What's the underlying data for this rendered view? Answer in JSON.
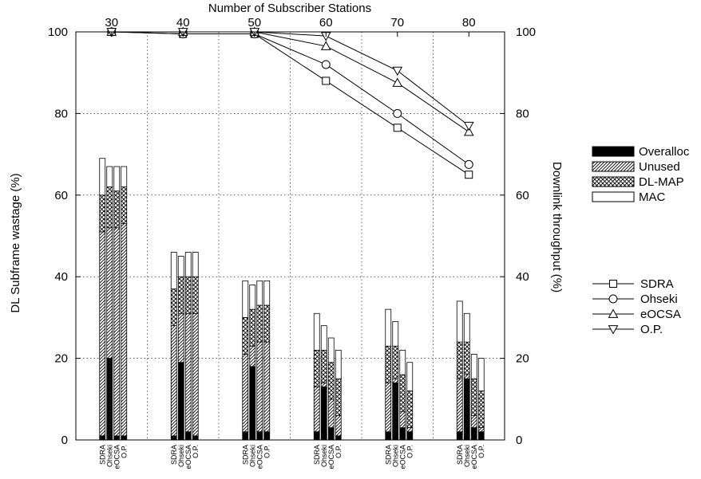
{
  "chart_data": {
    "type": "bar",
    "subtype": "stacked bar with line overlay (dual y-axis)",
    "xlabel_top": "Number of Subscriber Stations",
    "ylabel_left": "DL Subframe wastage (%)",
    "ylabel_right": "Downlink throughput (%)",
    "groups": [
      30,
      40,
      50,
      60,
      70,
      80
    ],
    "bar_labels": [
      "SDRA",
      "Ohseki",
      "eOCSA",
      "O.P."
    ],
    "ylim_left": [
      0,
      100
    ],
    "ylim_right": [
      0,
      100
    ],
    "yticks_left": [
      0,
      20,
      40,
      60,
      80,
      100
    ],
    "yticks_right": [
      0,
      20,
      40,
      60,
      80,
      100
    ],
    "grid": true,
    "stack_components": [
      "Overalloc",
      "Unused",
      "DL-MAP",
      "MAC"
    ],
    "stack_fill": {
      "Overalloc": "solid-black",
      "Unused": "diagonal-hatch",
      "DL-MAP": "cross-hatch",
      "MAC": "white"
    },
    "bars": [
      {
        "group": 30,
        "scheme": "SDRA",
        "Overalloc": 1,
        "Unused": 50,
        "DL-MAP": 9,
        "MAC": 9
      },
      {
        "group": 30,
        "scheme": "Ohseki",
        "Overalloc": 20,
        "Unused": 32,
        "DL-MAP": 10,
        "MAC": 5
      },
      {
        "group": 30,
        "scheme": "eOCSA",
        "Overalloc": 1,
        "Unused": 51,
        "DL-MAP": 9,
        "MAC": 6
      },
      {
        "group": 30,
        "scheme": "O.P.",
        "Overalloc": 1,
        "Unused": 52,
        "DL-MAP": 9,
        "MAC": 5
      },
      {
        "group": 40,
        "scheme": "SDRA",
        "Overalloc": 1,
        "Unused": 27,
        "DL-MAP": 9,
        "MAC": 9
      },
      {
        "group": 40,
        "scheme": "Ohseki",
        "Overalloc": 19,
        "Unused": 12,
        "DL-MAP": 9,
        "MAC": 5
      },
      {
        "group": 40,
        "scheme": "eOCSA",
        "Overalloc": 2,
        "Unused": 29,
        "DL-MAP": 9,
        "MAC": 6
      },
      {
        "group": 40,
        "scheme": "O.P.",
        "Overalloc": 1,
        "Unused": 30,
        "DL-MAP": 9,
        "MAC": 6
      },
      {
        "group": 50,
        "scheme": "SDRA",
        "Overalloc": 2,
        "Unused": 19,
        "DL-MAP": 9,
        "MAC": 9
      },
      {
        "group": 50,
        "scheme": "Ohseki",
        "Overalloc": 18,
        "Unused": 5,
        "DL-MAP": 9,
        "MAC": 6
      },
      {
        "group": 50,
        "scheme": "eOCSA",
        "Overalloc": 2,
        "Unused": 22,
        "DL-MAP": 9,
        "MAC": 6
      },
      {
        "group": 50,
        "scheme": "O.P.",
        "Overalloc": 2,
        "Unused": 22,
        "DL-MAP": 9,
        "MAC": 6
      },
      {
        "group": 60,
        "scheme": "SDRA",
        "Overalloc": 2,
        "Unused": 11,
        "DL-MAP": 9,
        "MAC": 9
      },
      {
        "group": 60,
        "scheme": "Ohseki",
        "Overalloc": 13,
        "Unused": 1,
        "DL-MAP": 8,
        "MAC": 6
      },
      {
        "group": 60,
        "scheme": "eOCSA",
        "Overalloc": 3,
        "Unused": 7,
        "DL-MAP": 9,
        "MAC": 6
      },
      {
        "group": 60,
        "scheme": "O.P.",
        "Overalloc": 1,
        "Unused": 5,
        "DL-MAP": 9,
        "MAC": 7
      },
      {
        "group": 70,
        "scheme": "SDRA",
        "Overalloc": 2,
        "Unused": 12,
        "DL-MAP": 9,
        "MAC": 9
      },
      {
        "group": 70,
        "scheme": "Ohseki",
        "Overalloc": 14,
        "Unused": 1,
        "DL-MAP": 8,
        "MAC": 6
      },
      {
        "group": 70,
        "scheme": "eOCSA",
        "Overalloc": 3,
        "Unused": 4,
        "DL-MAP": 9,
        "MAC": 6
      },
      {
        "group": 70,
        "scheme": "O.P.",
        "Overalloc": 2,
        "Unused": 1,
        "DL-MAP": 9,
        "MAC": 7
      },
      {
        "group": 80,
        "scheme": "SDRA",
        "Overalloc": 2,
        "Unused": 13,
        "DL-MAP": 9,
        "MAC": 10
      },
      {
        "group": 80,
        "scheme": "Ohseki",
        "Overalloc": 15,
        "Unused": 1,
        "DL-MAP": 8,
        "MAC": 7
      },
      {
        "group": 80,
        "scheme": "eOCSA",
        "Overalloc": 3,
        "Unused": 3,
        "DL-MAP": 9,
        "MAC": 6
      },
      {
        "group": 80,
        "scheme": "O.P.",
        "Overalloc": 2,
        "Unused": 1,
        "DL-MAP": 9,
        "MAC": 8
      }
    ],
    "line_series": [
      {
        "name": "SDRA",
        "marker": "square",
        "values": [
          100,
          99.5,
          99.5,
          88,
          76.5,
          65
        ]
      },
      {
        "name": "Ohseki",
        "marker": "circle",
        "values": [
          100,
          99.5,
          99.5,
          92,
          80,
          67.5
        ]
      },
      {
        "name": "eOCSA",
        "marker": "triangle-up",
        "values": [
          100,
          100,
          100,
          96.5,
          87.5,
          75.5
        ]
      },
      {
        "name": "O.P.",
        "marker": "triangle-down",
        "values": [
          100,
          100,
          100,
          99,
          90.5,
          77
        ]
      }
    ],
    "legends": {
      "bars": [
        "Overalloc",
        "Unused",
        "DL-MAP",
        "MAC"
      ],
      "lines": [
        "SDRA",
        "Ohseki",
        "eOCSA",
        "O.P."
      ]
    }
  }
}
